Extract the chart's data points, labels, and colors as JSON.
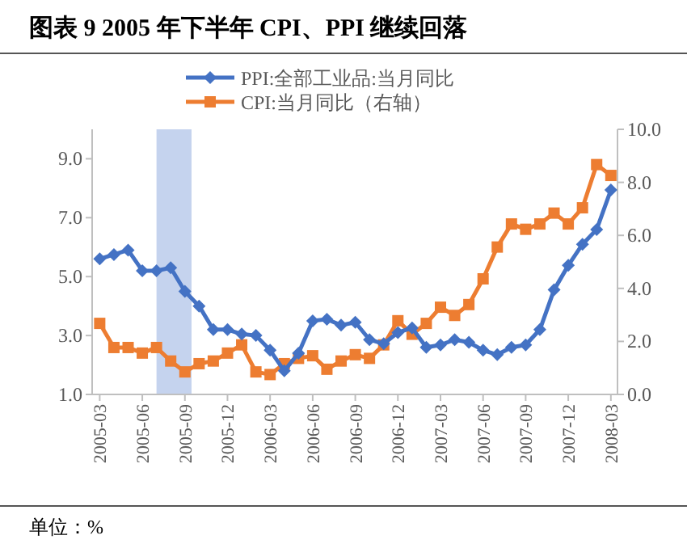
{
  "chart_data": {
    "type": "line",
    "title": "图表 9 2005 年下半年 CPI、PPI 继续回落",
    "x": [
      "2005-03",
      "2005-04",
      "2005-05",
      "2005-06",
      "2005-07",
      "2005-08",
      "2005-09",
      "2005-10",
      "2005-11",
      "2005-12",
      "2006-01",
      "2006-02",
      "2006-03",
      "2006-04",
      "2006-05",
      "2006-06",
      "2006-07",
      "2006-08",
      "2006-09",
      "2006-10",
      "2006-11",
      "2006-12",
      "2007-01",
      "2007-02",
      "2007-03",
      "2007-04",
      "2007-05",
      "2007-06",
      "2007-07",
      "2007-08",
      "2007-09",
      "2007-10",
      "2007-11",
      "2007-12",
      "2008-01",
      "2008-02",
      "2008-03"
    ],
    "series": [
      {
        "name": "PPI:全部工业品:当月同比",
        "color": "#4472c4",
        "marker": "diamond",
        "values": [
          5.6,
          5.75,
          5.9,
          5.2,
          5.2,
          5.3,
          4.5,
          4.0,
          3.2,
          3.2,
          3.05,
          3.0,
          2.5,
          1.8,
          2.4,
          3.5,
          3.55,
          3.35,
          3.45,
          2.86,
          2.72,
          3.1,
          3.26,
          2.6,
          2.68,
          2.86,
          2.77,
          2.5,
          2.35,
          2.6,
          2.68,
          3.2,
          4.55,
          5.38,
          6.1,
          6.6,
          7.94
        ]
      },
      {
        "name": "CPI:当月同比（右轴）",
        "color": "#ed7d31",
        "marker": "square",
        "axis": "y2",
        "values": [
          2.68,
          1.77,
          1.77,
          1.56,
          1.77,
          1.26,
          0.85,
          1.16,
          1.26,
          1.56,
          1.87,
          0.85,
          0.75,
          1.16,
          1.36,
          1.46,
          0.95,
          1.26,
          1.5,
          1.36,
          1.87,
          2.78,
          2.27,
          2.68,
          3.29,
          2.98,
          3.39,
          4.36,
          5.56,
          6.43,
          6.23,
          6.43,
          6.84,
          6.43,
          7.04,
          8.67,
          8.26
        ]
      }
    ],
    "xlim": [
      "2005-02-15",
      "2008-03-15"
    ],
    "xticks": [
      "2005-03",
      "2005-06",
      "2005-09",
      "2005-12",
      "2006-03",
      "2006-06",
      "2006-09",
      "2006-12",
      "2007-03",
      "2007-06",
      "2007-09",
      "2007-12",
      "2008-03"
    ],
    "ylim": [
      1,
      10
    ],
    "yticks": [
      {
        "value": 1,
        "label": "1.0"
      },
      {
        "value": 3,
        "label": "3.0"
      },
      {
        "value": 5,
        "label": "5.0"
      },
      {
        "value": 7,
        "label": "7.0"
      },
      {
        "value": 9,
        "label": "9.0"
      }
    ],
    "y2lim": [
      0,
      10
    ],
    "y2ticks": [
      {
        "value": 0,
        "label": "0.0"
      },
      {
        "value": 2,
        "label": "2.0"
      },
      {
        "value": 4,
        "label": "4.0"
      },
      {
        "value": 6,
        "label": "6.0"
      },
      {
        "value": 8,
        "label": "8.0"
      },
      {
        "value": 10,
        "label": "10.0"
      }
    ],
    "bands": [
      {
        "axis": "x",
        "from": "2005-07",
        "to": "2005-09-15",
        "color": "#c5d3ee"
      }
    ],
    "legend": "top",
    "grid": false,
    "line_style": "solid",
    "annotations": [
      "单位：%"
    ]
  }
}
